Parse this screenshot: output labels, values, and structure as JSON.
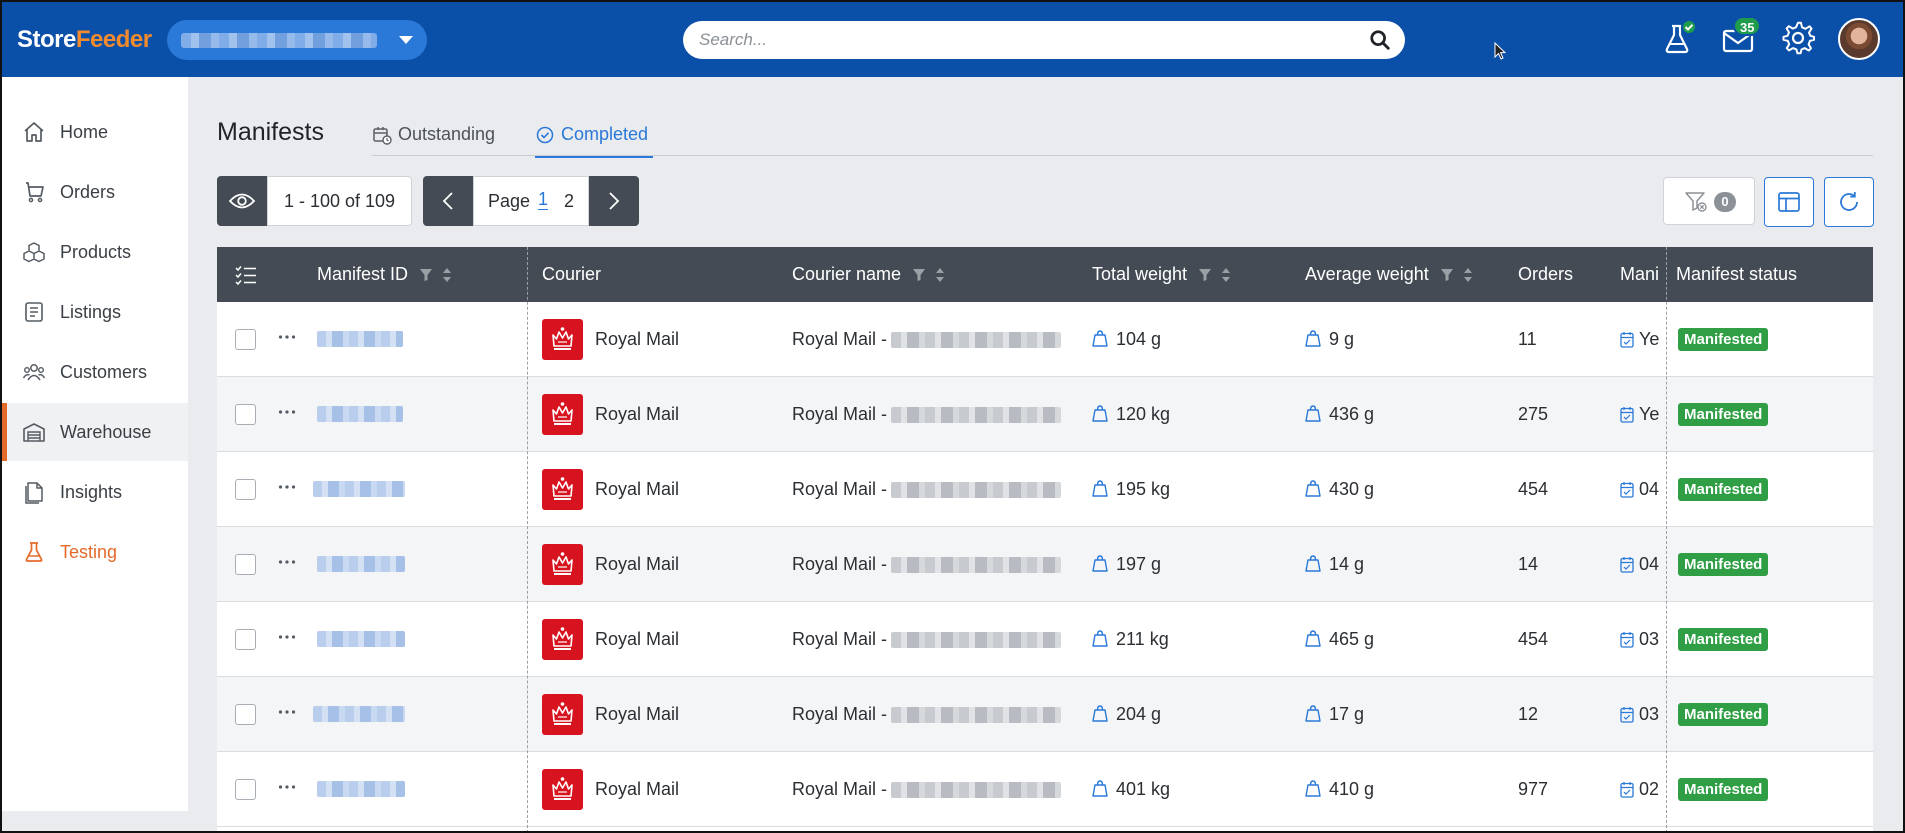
{
  "brand": {
    "name_part1": "Store",
    "name_part2": "Feeder",
    "accent": "#f28a2e",
    "topbar_color": "#0a4fa8"
  },
  "topbar": {
    "search_placeholder": "Search...",
    "mail_count": "35",
    "icons": [
      "beaker-check-icon",
      "mail-icon",
      "gear-icon",
      "avatar"
    ]
  },
  "sidebar": {
    "items": [
      {
        "label": "Home",
        "icon": "home-icon"
      },
      {
        "label": "Orders",
        "icon": "orders-icon"
      },
      {
        "label": "Products",
        "icon": "products-icon"
      },
      {
        "label": "Listings",
        "icon": "listings-icon"
      },
      {
        "label": "Customers",
        "icon": "customers-icon"
      },
      {
        "label": "Warehouse",
        "icon": "warehouse-icon"
      },
      {
        "label": "Insights",
        "icon": "insights-icon"
      },
      {
        "label": "Testing",
        "icon": "beaker-icon"
      }
    ]
  },
  "page": {
    "title": "Manifests",
    "tabs": [
      {
        "label": "Outstanding"
      },
      {
        "label": "Completed"
      }
    ]
  },
  "toolbar": {
    "range": "1 - 100 of 109",
    "page_label": "Page",
    "pages": [
      "1",
      "2"
    ],
    "filter_count": "0"
  },
  "table": {
    "columns": {
      "manifest_id": "Manifest ID",
      "courier": "Courier",
      "courier_name": "Courier name",
      "total_weight": "Total weight",
      "average_weight": "Average weight",
      "orders": "Orders",
      "manifested_date": "Mani",
      "manifest_status": "Manifest status"
    },
    "rows": [
      {
        "courier": "Royal Mail",
        "courier_name": "Royal Mail -",
        "total_weight": "104 g",
        "average_weight": "9 g",
        "orders": "11",
        "date": "Ye",
        "status": "Manifested"
      },
      {
        "courier": "Royal Mail",
        "courier_name": "Royal Mail -",
        "total_weight": "120 kg",
        "average_weight": "436 g",
        "orders": "275",
        "date": "Ye",
        "status": "Manifested"
      },
      {
        "courier": "Royal Mail",
        "courier_name": "Royal Mail -",
        "total_weight": "195 kg",
        "average_weight": "430 g",
        "orders": "454",
        "date": "04",
        "status": "Manifested"
      },
      {
        "courier": "Royal Mail",
        "courier_name": "Royal Mail -",
        "total_weight": "197 g",
        "average_weight": "14 g",
        "orders": "14",
        "date": "04",
        "status": "Manifested"
      },
      {
        "courier": "Royal Mail",
        "courier_name": "Royal Mail -",
        "total_weight": "211 kg",
        "average_weight": "465 g",
        "orders": "454",
        "date": "03",
        "status": "Manifested"
      },
      {
        "courier": "Royal Mail",
        "courier_name": "Royal Mail -",
        "total_weight": "204 g",
        "average_weight": "17 g",
        "orders": "12",
        "date": "03",
        "status": "Manifested"
      },
      {
        "courier": "Royal Mail",
        "courier_name": "Royal Mail -",
        "total_weight": "401 kg",
        "average_weight": "410 g",
        "orders": "977",
        "date": "02",
        "status": "Manifested"
      }
    ],
    "status_color": "#2f9e44",
    "courier_logo_color": "#d7131f"
  }
}
